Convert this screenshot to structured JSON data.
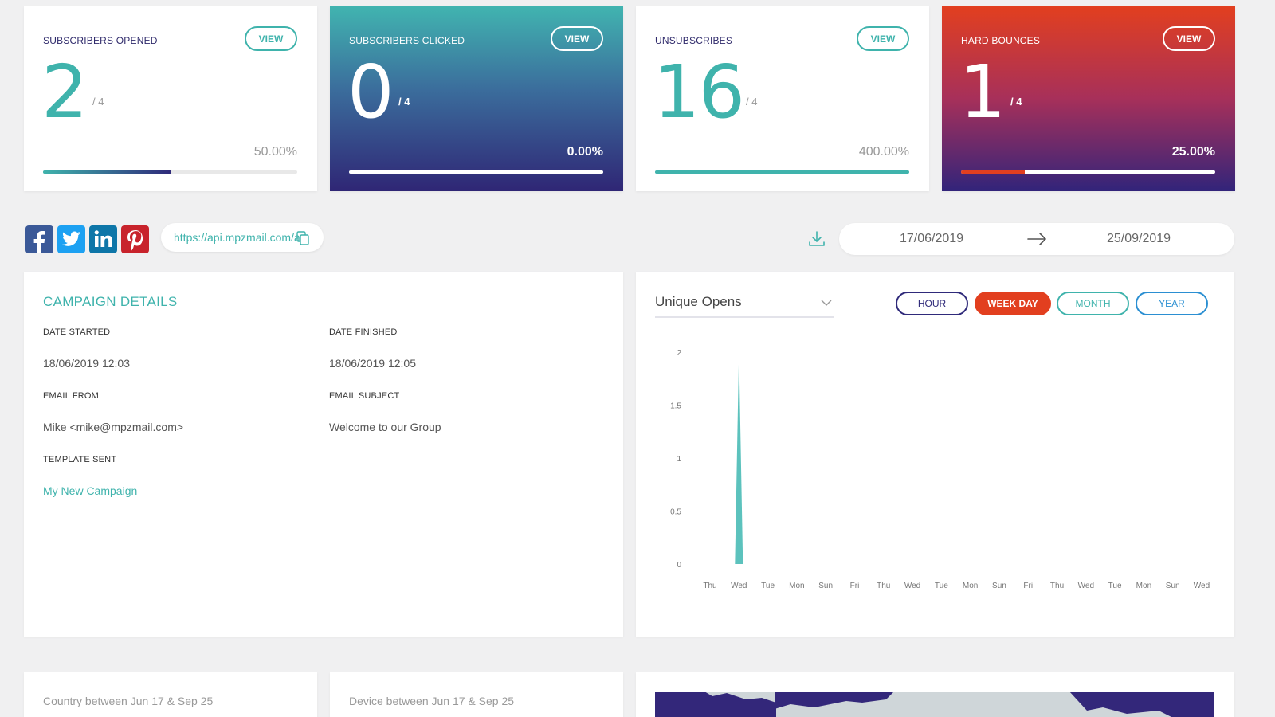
{
  "stats": [
    {
      "title": "SUBSCRIBERS OPENED",
      "value": "2",
      "denominator": "/ 4",
      "percent": "50.00%",
      "progress": 0.5,
      "view_label": "VIEW"
    },
    {
      "title": "SUBSCRIBERS CLICKED",
      "value": "0",
      "denominator": "/ 4",
      "percent": "0.00%",
      "progress": 0.0,
      "view_label": "VIEW"
    },
    {
      "title": "UNSUBSCRIBES",
      "value": "16",
      "denominator": "/ 4",
      "percent": "400.00%",
      "progress": 1.0,
      "view_label": "VIEW"
    },
    {
      "title": "HARD BOUNCES",
      "value": "1",
      "denominator": "/ 4",
      "percent": "25.00%",
      "progress": 0.25,
      "view_label": "VIEW"
    }
  ],
  "share": {
    "icons": [
      "facebook-icon",
      "twitter-icon",
      "linkedin-icon",
      "pinterest-icon"
    ],
    "link": "https://api.mpzmail.com/api"
  },
  "date_range": {
    "start": "17/06/2019",
    "end": "25/09/2019"
  },
  "campaign": {
    "heading": "CAMPAIGN DETAILS",
    "date_started_label": "DATE STARTED",
    "date_started": "18/06/2019 12:03",
    "date_finished_label": "DATE FINISHED",
    "date_finished": "18/06/2019 12:05",
    "email_from_label": "EMAIL FROM",
    "email_from": "Mike <mike@mpzmail.com>",
    "email_subject_label": "EMAIL SUBJECT",
    "email_subject": "Welcome to our Group",
    "template_label": "TEMPLATE SENT",
    "template": "My New Campaign"
  },
  "chart_panel": {
    "metric": "Unique Opens",
    "periods": [
      "HOUR",
      "WEEK DAY",
      "MONTH",
      "YEAR"
    ],
    "active_period": "WEEK DAY"
  },
  "chart_data": {
    "type": "area",
    "title": "",
    "xlabel": "",
    "ylabel": "",
    "categories": [
      "Thu",
      "Wed",
      "Tue",
      "Mon",
      "Sun",
      "Fri",
      "Thu",
      "Wed",
      "Tue",
      "Mon",
      "Sun",
      "Fri",
      "Thu",
      "Wed",
      "Tue",
      "Mon",
      "Sun",
      "Wed"
    ],
    "y_ticks": [
      "0",
      "0.5",
      "1",
      "1.5",
      "2"
    ],
    "ylim": [
      0,
      2
    ],
    "series": [
      {
        "values": [
          0,
          2,
          0,
          0,
          0,
          0,
          0,
          0,
          0,
          0,
          0,
          0,
          0,
          0,
          0,
          0,
          0,
          0
        ]
      }
    ],
    "color": "#5cc2bd",
    "grid": false
  },
  "bottom": {
    "country_caption": "Country between Jun 17 & Sep 25",
    "device_caption": "Device between Jun 17 & Sep 25"
  },
  "colors": {
    "accent": "#3fb3ac",
    "navy": "#2f2a7a",
    "red": "#e23f1f"
  }
}
